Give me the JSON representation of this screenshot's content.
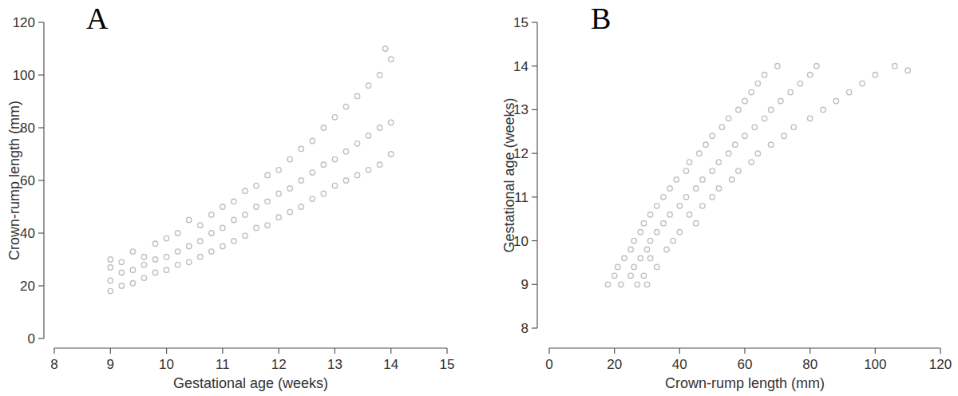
{
  "chart_data": [
    {
      "type": "scatter",
      "title": "A",
      "x_label": "Gestational age (weeks)",
      "y_label": "Crown-rump length (mm)",
      "color": "#c0c0c0",
      "marker": "circle",
      "xlim": [
        8,
        15
      ],
      "xticks": [
        8,
        9,
        10,
        11,
        12,
        13,
        14,
        15
      ],
      "ylim": [
        0,
        120
      ],
      "yticks": [
        0,
        20,
        40,
        60,
        80,
        100,
        120
      ],
      "x": [
        9,
        9,
        9,
        9,
        9.2,
        9.2,
        9.2,
        9.4,
        9.4,
        9.4,
        9.6,
        9.6,
        9.6,
        9.8,
        9.8,
        9.8,
        10,
        10,
        10,
        10.2,
        10.2,
        10.2,
        10.4,
        10.4,
        10.4,
        10.6,
        10.6,
        10.6,
        10.8,
        10.8,
        10.8,
        11,
        11,
        11,
        11.2,
        11.2,
        11.2,
        11.4,
        11.4,
        11.4,
        11.6,
        11.6,
        11.6,
        11.8,
        11.8,
        11.8,
        12,
        12,
        12,
        12.2,
        12.2,
        12.2,
        12.4,
        12.4,
        12.4,
        12.6,
        12.6,
        12.6,
        12.8,
        12.8,
        12.8,
        13,
        13,
        13,
        13.2,
        13.2,
        13.2,
        13.4,
        13.4,
        13.4,
        13.6,
        13.6,
        13.6,
        13.8,
        13.8,
        13.8,
        14,
        14,
        14,
        13.9
      ],
      "values": [
        18,
        22,
        27,
        30,
        20,
        25,
        29,
        21,
        26,
        33,
        23,
        28,
        31,
        25,
        30,
        36,
        26,
        31,
        38,
        28,
        33,
        40,
        29,
        35,
        45,
        31,
        37,
        43,
        33,
        40,
        47,
        35,
        42,
        50,
        37,
        45,
        52,
        39,
        47,
        56,
        42,
        50,
        58,
        43,
        52,
        62,
        46,
        55,
        64,
        48,
        57,
        68,
        50,
        60,
        72,
        53,
        63,
        75,
        55,
        66,
        80,
        58,
        68,
        84,
        60,
        71,
        88,
        62,
        74,
        92,
        64,
        77,
        96,
        66,
        80,
        100,
        70,
        82,
        106,
        110
      ]
    },
    {
      "type": "scatter",
      "title": "B",
      "x_label": "Crown-rump length (mm)",
      "y_label": "Gestational age (weeks)",
      "color": "#c0c0c0",
      "marker": "circle",
      "xlim": [
        0,
        120
      ],
      "xticks": [
        0,
        20,
        40,
        60,
        80,
        100,
        120
      ],
      "ylim": [
        8,
        15
      ],
      "yticks": [
        8,
        9,
        10,
        11,
        12,
        13,
        14,
        15
      ],
      "x": [
        18,
        22,
        27,
        30,
        20,
        25,
        29,
        21,
        26,
        33,
        23,
        28,
        31,
        25,
        30,
        36,
        26,
        31,
        38,
        28,
        33,
        40,
        29,
        35,
        45,
        31,
        37,
        43,
        33,
        40,
        47,
        35,
        42,
        50,
        37,
        45,
        52,
        39,
        47,
        56,
        42,
        50,
        58,
        43,
        52,
        62,
        46,
        55,
        64,
        48,
        57,
        68,
        50,
        60,
        72,
        53,
        63,
        75,
        55,
        66,
        80,
        58,
        68,
        84,
        60,
        71,
        88,
        62,
        74,
        92,
        64,
        77,
        96,
        66,
        80,
        100,
        70,
        82,
        106,
        110
      ],
      "values": [
        9,
        9,
        9,
        9,
        9.2,
        9.2,
        9.2,
        9.4,
        9.4,
        9.4,
        9.6,
        9.6,
        9.6,
        9.8,
        9.8,
        9.8,
        10,
        10,
        10,
        10.2,
        10.2,
        10.2,
        10.4,
        10.4,
        10.4,
        10.6,
        10.6,
        10.6,
        10.8,
        10.8,
        10.8,
        11,
        11,
        11,
        11.2,
        11.2,
        11.2,
        11.4,
        11.4,
        11.4,
        11.6,
        11.6,
        11.6,
        11.8,
        11.8,
        11.8,
        12,
        12,
        12,
        12.2,
        12.2,
        12.2,
        12.4,
        12.4,
        12.4,
        12.6,
        12.6,
        12.6,
        12.8,
        12.8,
        12.8,
        13,
        13,
        13,
        13.2,
        13.2,
        13.2,
        13.4,
        13.4,
        13.4,
        13.6,
        13.6,
        13.6,
        13.8,
        13.8,
        13.8,
        14,
        14,
        14,
        13.9
      ]
    }
  ]
}
